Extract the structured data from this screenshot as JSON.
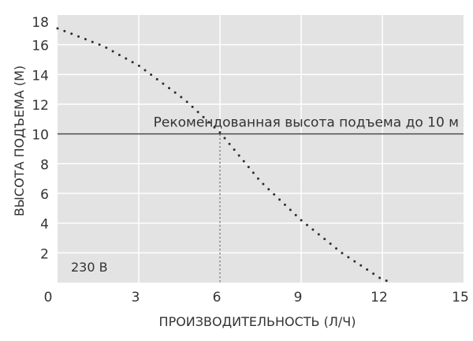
{
  "chart_data": {
    "type": "line",
    "title": "",
    "xlabel": "ПРОИЗВОДИТЕЛЬНОСТЬ (Л/Ч)",
    "ylabel": "ВЫСОТА ПОДЪЕМА (М)",
    "xlim": [
      0,
      15
    ],
    "ylim": [
      0,
      18
    ],
    "x_ticks": [
      0,
      3,
      6,
      9,
      12,
      15
    ],
    "y_ticks": [
      2,
      4,
      6,
      8,
      10,
      12,
      14,
      16,
      18
    ],
    "grid": true,
    "series": [
      {
        "style": "dotted",
        "x": [
          0,
          1.7,
          3,
          4.7,
          6,
          7.5,
          9,
          10.5,
          12,
          12.2
        ],
        "y": [
          17.1,
          15.9,
          14.6,
          12.3,
          10.1,
          6.8,
          4.2,
          2.0,
          0.2,
          0.1
        ]
      }
    ],
    "reference_line": {
      "y": 10,
      "label": "Рекомендованная высота подъема до 10 м"
    },
    "reference_vline": {
      "x": 6,
      "style": "dashed"
    },
    "annotation": "230 В",
    "colors": {
      "plot_background": "#e3e3e3",
      "grid": "#ffffff",
      "line": "#2b2b3a"
    }
  }
}
